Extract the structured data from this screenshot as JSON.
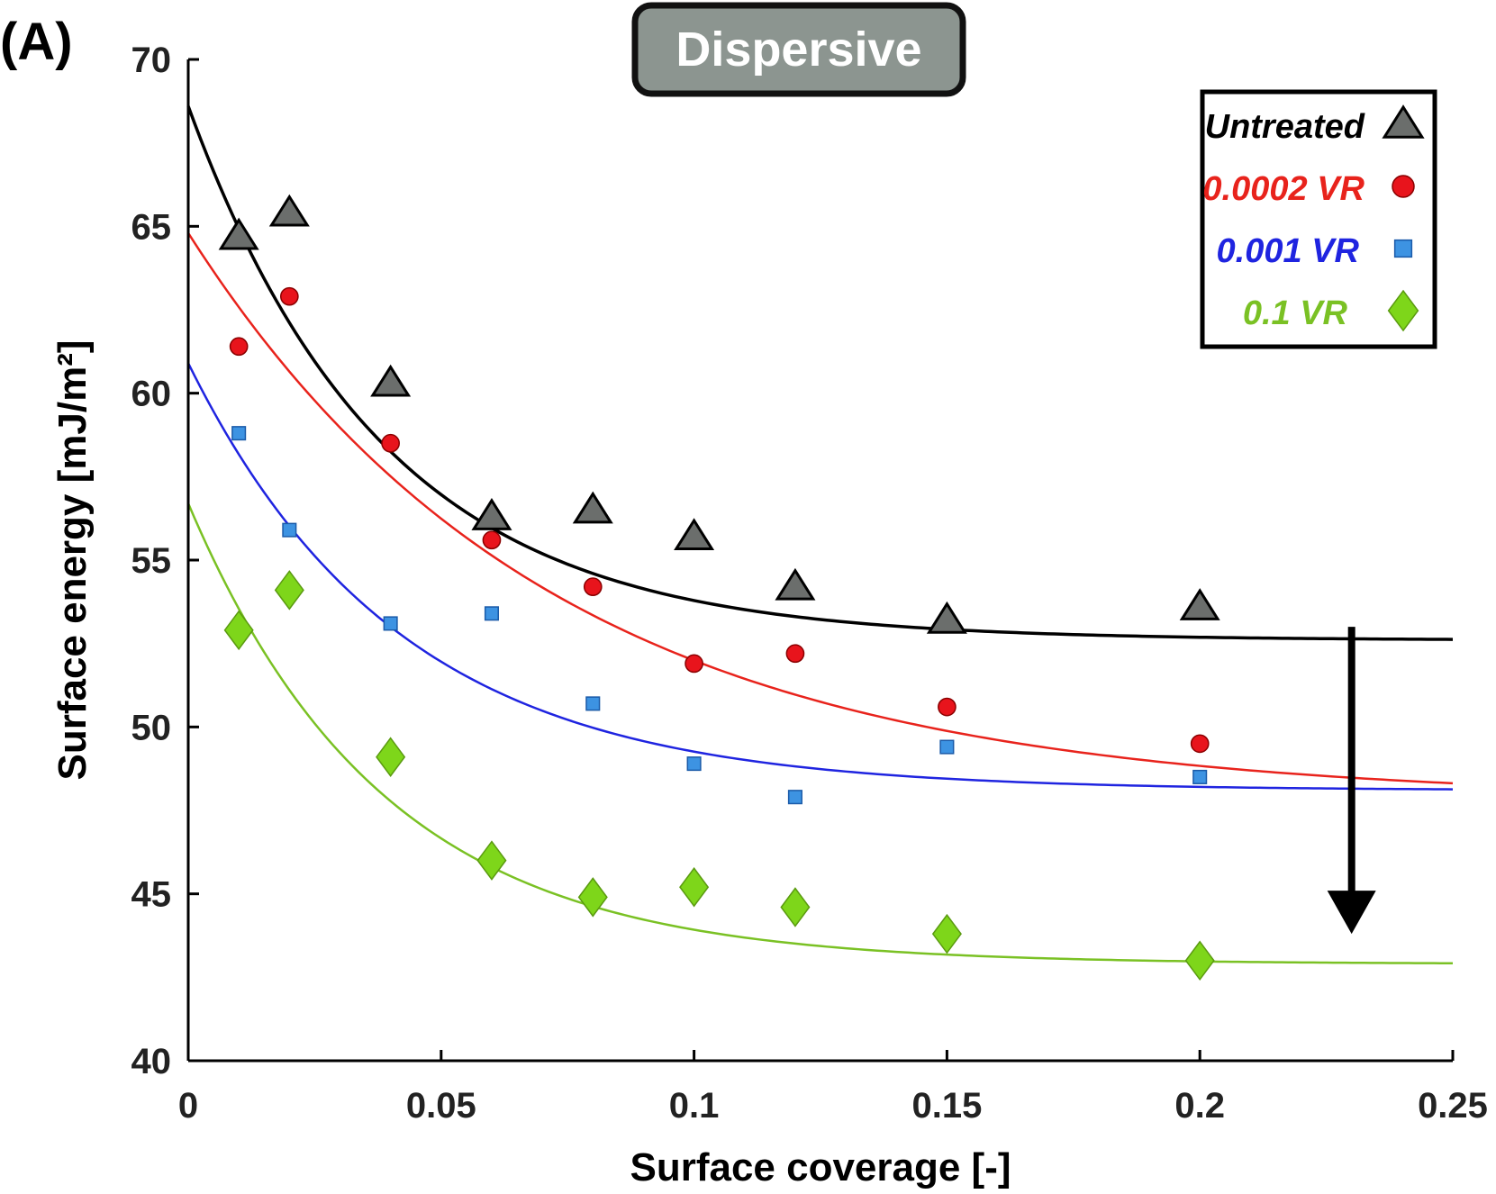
{
  "panel_label": "(A)",
  "chart_data": {
    "type": "scatter",
    "title": "Dispersive",
    "xlabel": "Surface coverage [-]",
    "ylabel": "Surface energy [mJ/m²]",
    "xlim": [
      0,
      0.25
    ],
    "ylim": [
      40,
      70
    ],
    "x_ticks": [
      0,
      0.05,
      0.1,
      0.15,
      0.2,
      0.25
    ],
    "x_tick_labels": [
      "0",
      "0.05",
      "0.1",
      "0.15",
      "0.2",
      "0.25"
    ],
    "y_ticks": [
      40,
      45,
      50,
      55,
      60,
      65,
      70
    ],
    "y_tick_labels": [
      "40",
      "45",
      "50",
      "55",
      "60",
      "65",
      "70"
    ],
    "grid": false,
    "legend_position": "top-right",
    "x": [
      0.01,
      0.02,
      0.04,
      0.06,
      0.08,
      0.1,
      0.12,
      0.15,
      0.2
    ],
    "series": [
      {
        "name": "Untreated",
        "marker": "triangle",
        "color": "#000000",
        "marker_color": "#6b6e6c",
        "values": [
          64.7,
          65.4,
          60.3,
          56.3,
          56.5,
          55.7,
          54.2,
          53.2,
          53.6
        ],
        "fit": {
          "a": 52.6,
          "b": 16.0,
          "k": 26
        }
      },
      {
        "name": "0.0002 VR",
        "marker": "circle",
        "color": "#e8231c",
        "marker_color": "#e8141c",
        "values": [
          61.4,
          62.9,
          58.5,
          55.6,
          54.2,
          51.9,
          52.2,
          50.6,
          49.5
        ],
        "fit": {
          "a": 47.8,
          "b": 17.0,
          "k": 14
        }
      },
      {
        "name": "0.001 VR",
        "marker": "square",
        "color": "#1f24e0",
        "marker_color": "#3d93e2",
        "values": [
          58.8,
          55.9,
          53.1,
          53.4,
          50.7,
          48.9,
          47.9,
          49.4,
          48.5
        ],
        "fit": {
          "a": 48.1,
          "b": 12.8,
          "k": 24
        }
      },
      {
        "name": "0.1 VR",
        "marker": "diamond",
        "color": "#7ac124",
        "marker_color": "#7ed61a",
        "values": [
          52.9,
          54.1,
          49.1,
          46.0,
          44.9,
          45.2,
          44.6,
          43.8,
          43.0
        ],
        "fit": {
          "a": 42.9,
          "b": 13.8,
          "k": 26
        }
      }
    ],
    "annotations": [
      {
        "type": "arrow",
        "direction": "down",
        "x": 0.23,
        "y_from": 53.0,
        "y_to": 43.8
      }
    ]
  }
}
